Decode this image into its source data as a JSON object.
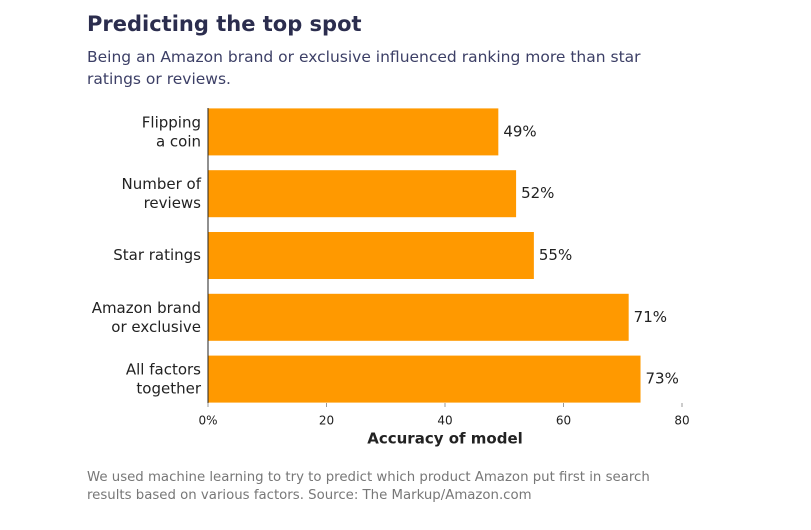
{
  "chart_data": {
    "type": "bar",
    "orientation": "horizontal",
    "title": "Predicting the top spot",
    "subtitle": "Being an Amazon brand or exclusive influenced ranking more than star ratings or reviews.",
    "categories": [
      "Flipping\na coin",
      "Number of\nreviews",
      "Star ratings",
      "Amazon brand\nor exclusive",
      "All factors\ntogether"
    ],
    "values": [
      49,
      52,
      55,
      71,
      73
    ],
    "value_labels": [
      "49%",
      "52%",
      "55%",
      "71%",
      "73%"
    ],
    "color": "#ff9900",
    "xlim": [
      0,
      80
    ],
    "xticks": [
      {
        "value": 0,
        "label": "0%"
      },
      20,
      40,
      60,
      80
    ],
    "xlabel": "Accuracy of model",
    "footnote": "We used machine learning to try to predict which product Amazon put first in search results based on various factors. Source: The Markup/Amazon.com"
  }
}
